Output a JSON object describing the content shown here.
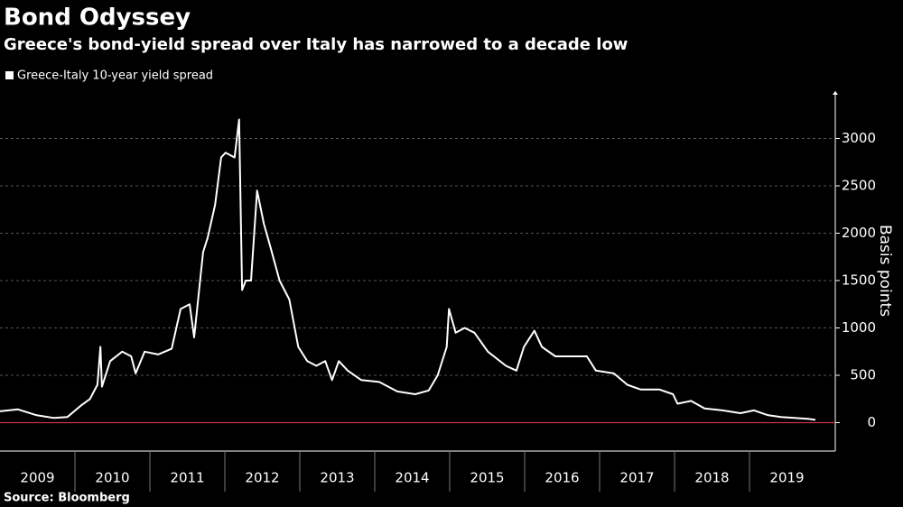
{
  "title": "Bond Odyssey",
  "subtitle": "Greece's bond-yield spread over Italy has narrowed to a decade low",
  "source": "Source: Bloomberg",
  "chart_data": {
    "type": "line",
    "y_label": "Basis points",
    "x": [
      2009.0,
      2009.24,
      2009.48,
      2009.72,
      2009.9,
      2010.08,
      2010.2,
      2010.3,
      2010.34,
      2010.36,
      2010.47,
      2010.63,
      2010.75,
      2010.81,
      2010.93,
      2011.11,
      2011.29,
      2011.41,
      2011.53,
      2011.59,
      2011.71,
      2011.77,
      2011.87,
      2011.95,
      2012.01,
      2012.13,
      2012.19,
      2012.23,
      2012.28,
      2012.35,
      2012.43,
      2012.52,
      2012.61,
      2012.73,
      2012.86,
      2012.98,
      2013.1,
      2013.22,
      2013.34,
      2013.43,
      2013.52,
      2013.64,
      2013.82,
      2014.06,
      2014.3,
      2014.54,
      2014.72,
      2014.84,
      2014.96,
      2014.99,
      2015.08,
      2015.2,
      2015.33,
      2015.51,
      2015.75,
      2015.89,
      2015.99,
      2016.13,
      2016.23,
      2016.41,
      2016.59,
      2016.83,
      2016.95,
      2017.19,
      2017.37,
      2017.55,
      2017.8,
      2017.98,
      2018.04,
      2018.22,
      2018.4,
      2018.64,
      2018.88,
      2019.06,
      2019.24,
      2019.42,
      2019.6,
      2019.78,
      2019.88
    ],
    "series": [
      {
        "name": "Greece-Italy 10-year yield spread",
        "color": "#ffffff",
        "values": [
          120,
          140,
          80,
          50,
          60,
          180,
          250,
          400,
          800,
          380,
          650,
          750,
          700,
          520,
          750,
          720,
          780,
          1200,
          1250,
          900,
          1800,
          1950,
          2300,
          2800,
          2850,
          2800,
          3200,
          1400,
          1500,
          1500,
          2450,
          2100,
          1850,
          1500,
          1300,
          800,
          650,
          600,
          650,
          450,
          650,
          550,
          450,
          430,
          330,
          300,
          340,
          500,
          800,
          1200,
          950,
          1000,
          950,
          750,
          600,
          550,
          800,
          970,
          800,
          700,
          700,
          700,
          550,
          520,
          400,
          350,
          350,
          300,
          200,
          230,
          150,
          130,
          100,
          130,
          80,
          60,
          50,
          40,
          30
        ]
      }
    ],
    "xlim": [
      2009,
      2020
    ],
    "xticks": [
      {
        "value": 2009,
        "label": "2009"
      },
      {
        "value": 2010,
        "label": "2010"
      },
      {
        "value": 2011,
        "label": "2011"
      },
      {
        "value": 2012,
        "label": "2012"
      },
      {
        "value": 2013,
        "label": "2013"
      },
      {
        "value": 2014,
        "label": "2014"
      },
      {
        "value": 2015,
        "label": "2015"
      },
      {
        "value": 2016,
        "label": "2016"
      },
      {
        "value": 2017,
        "label": "2017"
      },
      {
        "value": 2018,
        "label": "2018"
      },
      {
        "value": 2019,
        "label": "2019"
      }
    ],
    "ylim": [
      -300,
      3500
    ],
    "yticks": [
      0,
      500,
      1000,
      1500,
      2000,
      2500,
      3000
    ],
    "grid": true,
    "baseline_color": "#c8324a"
  }
}
